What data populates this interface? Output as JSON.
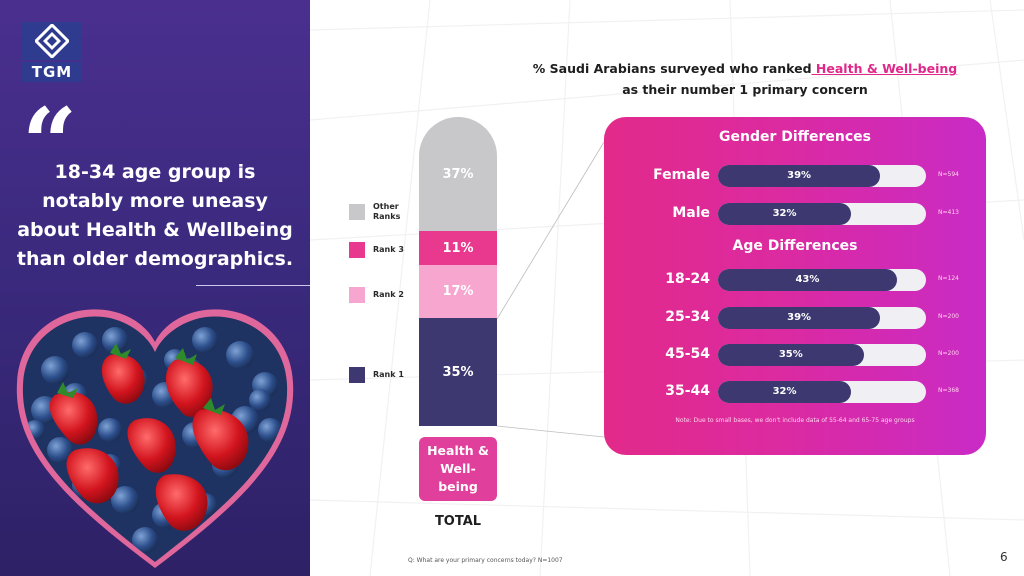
{
  "brand": {
    "logo_text": "TGM"
  },
  "left": {
    "quote_mark": "“",
    "headline_lines": [
      "18-34 age group is",
      "notably more uneasy",
      "about Health & Wellbeing",
      "than older demographics."
    ]
  },
  "title": {
    "prefix": "% Saudi Arabians surveyed who ranked",
    "highlight": " Health & Well-being",
    "line2": "as their number 1 primary concern"
  },
  "colors": {
    "rank1": "#3d3870",
    "rank2": "#f7a6d0",
    "rank3": "#e9398f",
    "other": "#c8c7c9",
    "panel": "#e22a8a",
    "accent": "#e0278a"
  },
  "chart_data": [
    {
      "type": "bar",
      "stacked": true,
      "categories": [
        "Health & Well-being"
      ],
      "series": [
        {
          "name": "Rank 1",
          "values": [
            35
          ]
        },
        {
          "name": "Rank 2",
          "values": [
            17
          ]
        },
        {
          "name": "Rank 3",
          "values": [
            11
          ]
        },
        {
          "name": "Other Ranks",
          "values": [
            37
          ]
        }
      ],
      "labels": [
        "35%",
        "17%",
        "11%",
        "37%"
      ],
      "category_label_lines": [
        "Health &",
        "Well-",
        "being"
      ],
      "xlabel": "TOTAL",
      "legend": [
        "Other Ranks",
        "Rank 3",
        "Rank 2",
        "Rank 1"
      ]
    },
    {
      "type": "bar",
      "orientation": "horizontal",
      "title": "Gender Differences",
      "categories": [
        "Female",
        "Male"
      ],
      "values": [
        39,
        32
      ],
      "labels": [
        "39%",
        "32%"
      ],
      "bases": [
        "N=594",
        "N=413"
      ],
      "xlim": [
        0,
        100
      ]
    },
    {
      "type": "bar",
      "orientation": "horizontal",
      "title": "Age Differences",
      "categories": [
        "18-24",
        "25-34",
        "45-54",
        "35-44"
      ],
      "values": [
        43,
        39,
        35,
        32
      ],
      "labels": [
        "43%",
        "39%",
        "35%",
        "32%"
      ],
      "bases": [
        "N=124",
        "N=200",
        "N=200",
        "N=368"
      ],
      "xlim": [
        0,
        100
      ]
    }
  ],
  "panel": {
    "note": "Note: Due to small bases, we don't include data of 55-64 and 65-75 age groups"
  },
  "footer": {
    "question": "Q: What are your primary concerns today? N=1007",
    "page": "6"
  }
}
